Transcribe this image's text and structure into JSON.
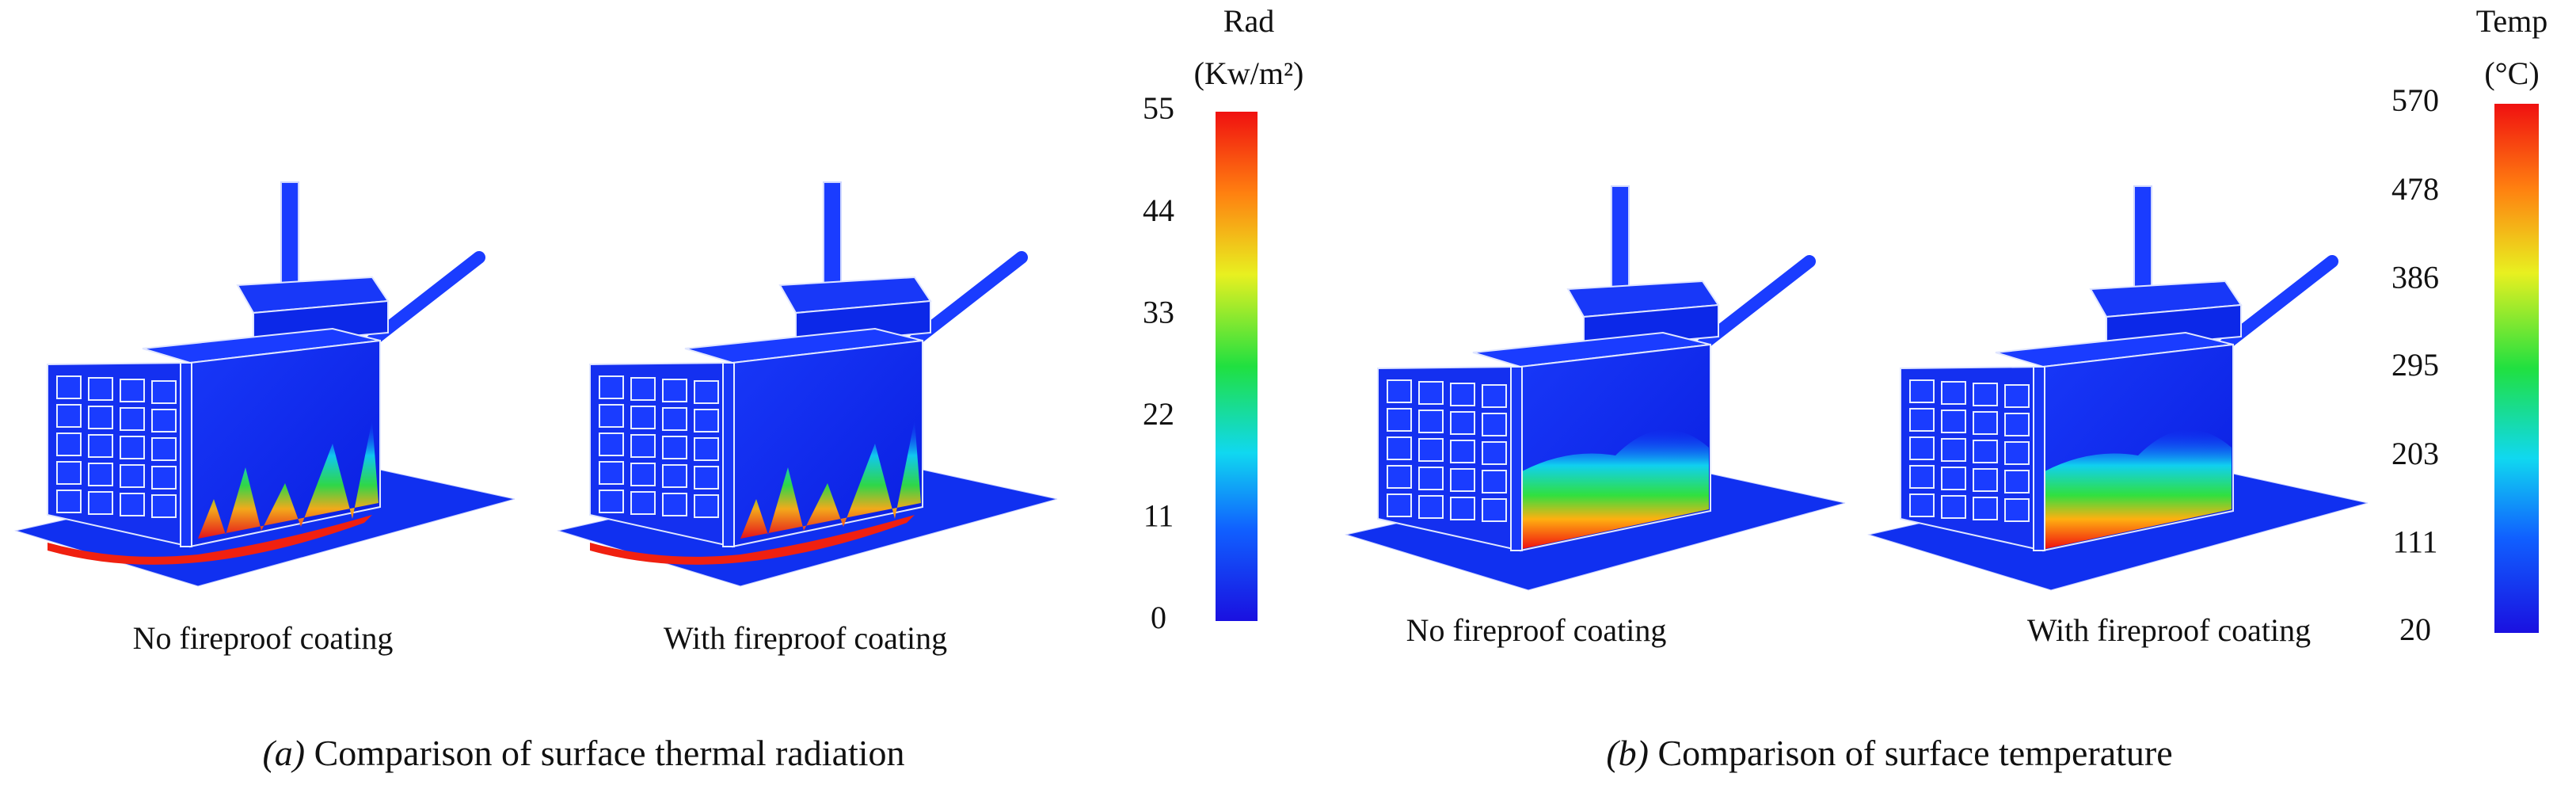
{
  "panels": [
    {
      "label": "(a)",
      "caption": "Comparison of surface thermal radiation",
      "images": [
        {
          "label": "No fireproof coating"
        },
        {
          "label": "With fireproof coating"
        }
      ],
      "colorbar": {
        "title": "Rad",
        "unit": "(Kw/m²)",
        "ticks": [
          0,
          11,
          22,
          33,
          44,
          55
        ]
      }
    },
    {
      "label": "(b)",
      "caption": "Comparison of surface temperature",
      "images": [
        {
          "label": "No fireproof coating"
        },
        {
          "label": "With fireproof coating"
        }
      ],
      "colorbar": {
        "title": "Temp",
        "unit": "(°C)",
        "ticks": [
          20,
          111,
          203,
          295,
          386,
          478,
          570
        ]
      }
    }
  ]
}
